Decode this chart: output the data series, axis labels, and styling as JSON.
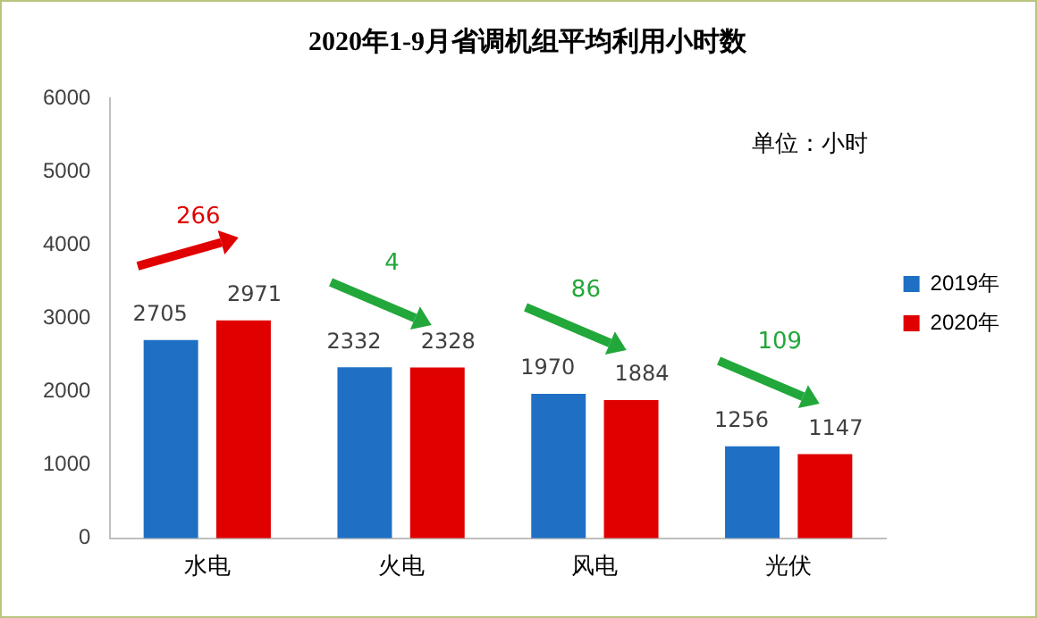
{
  "chart_data": {
    "type": "bar",
    "title": "2020年1-9月省调机组平均利用小时数",
    "categories": [
      "水电",
      "火电",
      "风电",
      "光伏"
    ],
    "series": [
      {
        "name": "2019年",
        "color": "#1f6fc5",
        "values": [
          2705,
          2332,
          1970,
          1256
        ]
      },
      {
        "name": "2020年",
        "color": "#e00000",
        "values": [
          2971,
          2328,
          1884,
          1147
        ]
      }
    ],
    "ylim": [
      0,
      6000
    ],
    "yticks": [
      0,
      1000,
      2000,
      3000,
      4000,
      5000,
      6000
    ],
    "grid": false,
    "legend": "right",
    "data_labels": true,
    "annotations": [
      "单位：小时",
      "266",
      "4",
      "86",
      "109"
    ]
  }
}
